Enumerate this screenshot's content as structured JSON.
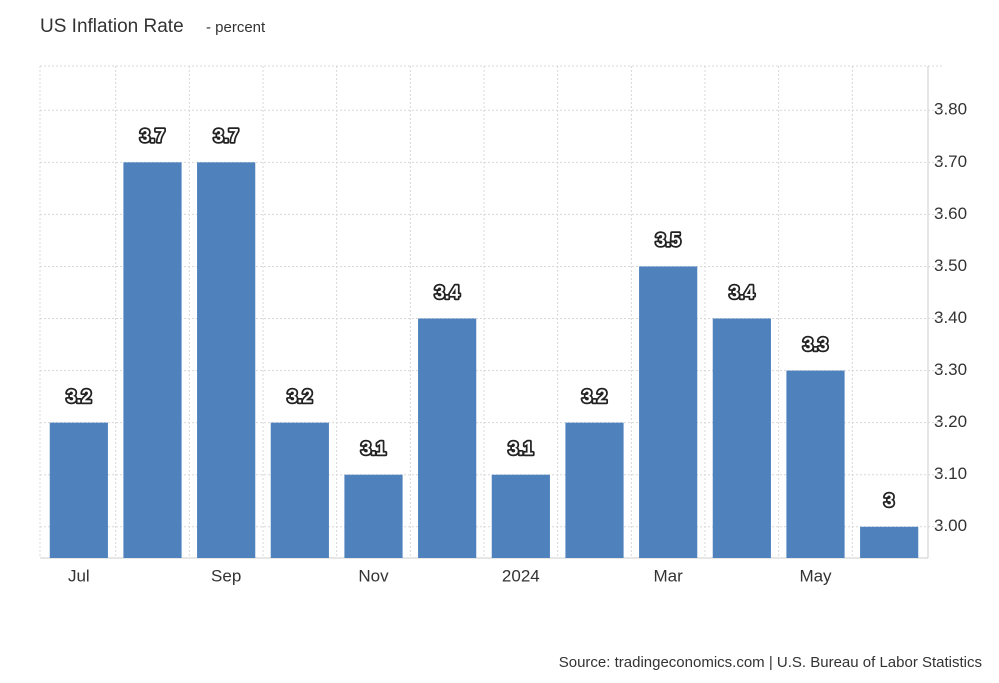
{
  "chart_data": {
    "type": "bar",
    "title": "US Inflation Rate",
    "subtitle": "- percent",
    "categories": [
      "Jul",
      null,
      "Sep",
      null,
      "Nov",
      null,
      "2024",
      null,
      "Mar",
      null,
      "May",
      null
    ],
    "values": [
      3.2,
      3.7,
      3.7,
      3.2,
      3.1,
      3.4,
      3.1,
      3.2,
      3.5,
      3.4,
      3.3,
      3
    ],
    "color": "#4f81bd",
    "ylim": [
      2.94,
      3.885
    ],
    "yticks": [
      {
        "value": 3.0,
        "label": "3.00"
      },
      {
        "value": 3.1,
        "label": "3.10"
      },
      {
        "value": 3.2,
        "label": "3.20"
      },
      {
        "value": 3.3,
        "label": "3.30"
      },
      {
        "value": 3.4,
        "label": "3.40"
      },
      {
        "value": 3.5,
        "label": "3.50"
      },
      {
        "value": 3.6,
        "label": "3.60"
      },
      {
        "value": 3.7,
        "label": "3.70"
      },
      {
        "value": 3.8,
        "label": "3.80"
      }
    ],
    "grid": true,
    "source": "Source: tradingeconomics.com | U.S. Bureau of Labor Statistics"
  }
}
